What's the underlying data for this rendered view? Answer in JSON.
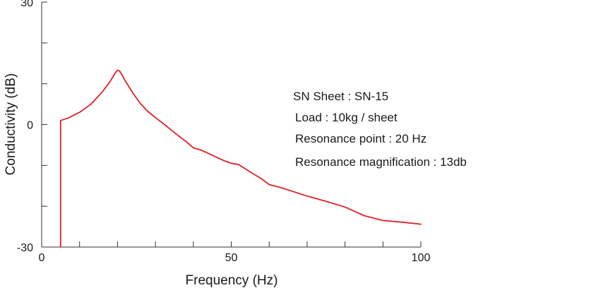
{
  "chart_data": {
    "type": "line",
    "xlabel": "Frequency (Hz)",
    "ylabel": "Conductivity (dB)",
    "xlim": [
      0,
      100
    ],
    "ylim": [
      -30,
      30
    ],
    "x_tick_labels": [
      {
        "value": 0,
        "label": "0"
      },
      {
        "value": 50,
        "label": "50"
      },
      {
        "value": 100,
        "label": "100"
      }
    ],
    "x_minor_ticks": [
      10,
      20,
      30,
      40,
      60,
      70,
      80,
      90
    ],
    "y_tick_labels": [
      {
        "value": 30,
        "label": "30"
      },
      {
        "value": 0,
        "label": "0"
      },
      {
        "value": -30,
        "label": "-30"
      }
    ],
    "y_minor_ticks": [
      20,
      10,
      -10,
      -20
    ],
    "grid": false,
    "line_color": "#e01f26",
    "series": [
      {
        "x": [
          5,
          5,
          7,
          10,
          13,
          16,
          18,
          19.5,
          20,
          20.5,
          21,
          22,
          24,
          26,
          28,
          30,
          32,
          34,
          36,
          38,
          40,
          42,
          45,
          48,
          50,
          52,
          55,
          58,
          60,
          63,
          66,
          70,
          75,
          80,
          85,
          90,
          95,
          100
        ],
        "y": [
          -30,
          1,
          1.6,
          3,
          5,
          8,
          10.5,
          12.8,
          13.3,
          13.2,
          12.5,
          10.8,
          7.8,
          5.2,
          3.2,
          1.7,
          0.3,
          -1.2,
          -2.7,
          -4.1,
          -5.7,
          -6.2,
          -7.5,
          -8.8,
          -9.5,
          -9.8,
          -11.6,
          -13.3,
          -14.7,
          -15.4,
          -16.3,
          -17.5,
          -18.8,
          -20.2,
          -22.3,
          -23.5,
          -23.9,
          -24.4
        ]
      }
    ],
    "annotations": [
      "SN Sheet : SN-15",
      "Load : 10kg / sheet",
      "Resonance point : 20 Hz",
      "Resonance magnification : 13db"
    ]
  }
}
